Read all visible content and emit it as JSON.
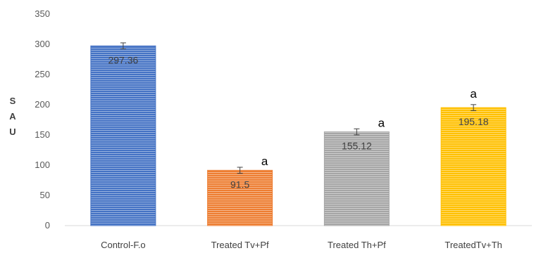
{
  "chart_data": {
    "type": "bar",
    "title": "",
    "xlabel": "",
    "ylabel": [
      "S",
      "A",
      "U"
    ],
    "ylim": [
      0,
      350
    ],
    "yticks": [
      0,
      50,
      100,
      150,
      200,
      250,
      300,
      350
    ],
    "grid": false,
    "categories": [
      "Control-F.o",
      "Treated Tv+Pf",
      "Treated Th+Pf",
      "TreatedTv+Th"
    ],
    "values": [
      297.36,
      91.5,
      155.12,
      195.18
    ],
    "error": [
      5,
      5,
      5,
      5
    ],
    "data_labels": [
      "297.36",
      "91.5",
      "155.12",
      "195.18"
    ],
    "annotations": [
      "",
      "a",
      "a",
      "a"
    ],
    "colors": [
      "#4472c4",
      "#ed7d31",
      "#a5a5a5",
      "#ffc000"
    ]
  }
}
